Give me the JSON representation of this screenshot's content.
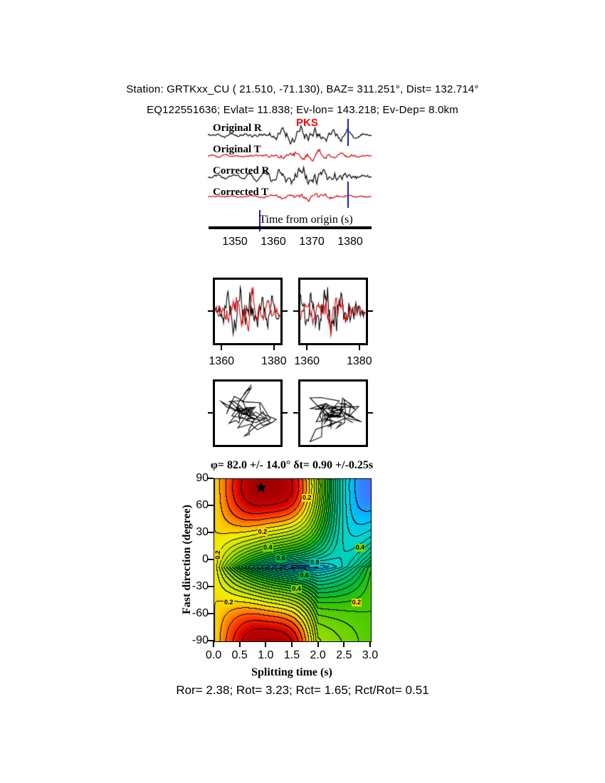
{
  "header": {
    "line1": "Station: GRTKxx_CU (  21.510,  -71.130), BAZ=  311.251°, Dist=  132.714°",
    "line2": "EQ122551636; Evlat=  11.838; Ev-lon= 143.218; Ev-Dep=  8.0km"
  },
  "footer": {
    "text": "Ror= 2.38; Rot= 3.23; Rct= 1.65; Rct/Rot= 0.51"
  },
  "chart_data": [
    {
      "id": "seismograms",
      "type": "line",
      "axis_label": "Time from origin (s)",
      "phase_label": "PKS",
      "phase_color": "#ff0000",
      "xticks": [
        1350,
        1360,
        1370,
        1380
      ],
      "xlim": [
        1343,
        1386
      ],
      "traces": [
        {
          "label": "Original R",
          "color": "#000000",
          "seed": 11,
          "amp": 13
        },
        {
          "label": "Original T",
          "color": "#d40000",
          "seed": 22,
          "amp": 9
        },
        {
          "label": "Corrected R",
          "color": "#000000",
          "seed": 33,
          "amp": 13
        },
        {
          "label": "Corrected T",
          "color": "#d40000",
          "seed": 44,
          "amp": 7
        }
      ],
      "envelope": {
        "center": 1369,
        "width": 9,
        "floor": 0.22
      },
      "window_markers": {
        "color": "#2222bb",
        "marks": [
          {
            "t": 1356.4,
            "at": "axis"
          },
          {
            "t": 1379.5,
            "at": "trace0"
          },
          {
            "t": 1379.5,
            "at": "trace3"
          }
        ]
      }
    },
    {
      "id": "zoom_windows",
      "type": "line",
      "xlim": [
        1357.5,
        1382.5
      ],
      "xticks": [
        1360,
        1380
      ],
      "panels": [
        {
          "name": "original R/T overlay",
          "r_trace": 0,
          "t_trace": 1
        },
        {
          "name": "corrected R/T overlay",
          "r_trace": 2,
          "t_trace": 3
        }
      ]
    },
    {
      "id": "particle_motion",
      "type": "scatter",
      "panels": [
        {
          "name": "original particle motion",
          "x_trace": 0,
          "y_trace": 1
        },
        {
          "name": "corrected particle motion",
          "x_trace": 2,
          "y_trace": 3
        }
      ]
    },
    {
      "id": "splitting_misfit",
      "type": "heatmap",
      "title": "φ= 82.0 +/- 14.0°  δt= 0.90 +/-0.25s",
      "xlabel": "Splitting time (s)",
      "ylabel": "Fast direction (degree)",
      "xticks": [
        "0.0",
        "0.5",
        "1.0",
        "1.5",
        "2.0",
        "2.5",
        "3.0"
      ],
      "yticks": [
        90,
        60,
        30,
        0,
        -30,
        -60,
        -90
      ],
      "xlim": [
        0,
        3
      ],
      "ylim": [
        -90,
        90
      ],
      "best": {
        "phi": 82.0,
        "dt": 0.9
      },
      "contour_interval": 0.04,
      "surface_model": {
        "phi0": 82,
        "dt0": 0.9,
        "left_width": 1.9,
        "right_width": 1.35,
        "bottom_floor": 0.7,
        "bottom_width": 4.0,
        "t2_scale": 0.8,
        "max_dt": 1.7,
        "angle_pow": 0.7
      },
      "labels": [
        {
          "v": "0.2",
          "t": 1.8,
          "phi": 68
        },
        {
          "v": "0.2",
          "t": 0.95,
          "phi": 30
        },
        {
          "v": "0.2",
          "t": 0.1,
          "phi": 5,
          "rot": -90
        },
        {
          "v": "0.4",
          "t": 1.05,
          "phi": 13
        },
        {
          "v": "0.4",
          "t": 2.82,
          "phi": 13
        },
        {
          "v": "0.6",
          "t": 1.3,
          "phi": 1
        },
        {
          "v": "0.8",
          "t": 1.95,
          "phi": -4
        },
        {
          "v": "0.6",
          "t": 1.75,
          "phi": -18
        },
        {
          "v": "0.4",
          "t": 1.6,
          "phi": -33
        },
        {
          "v": "0.2",
          "t": 0.3,
          "phi": -48
        },
        {
          "v": "0.2",
          "t": 2.75,
          "phi": -48
        }
      ],
      "colormap": [
        [
          0.0,
          160,
          0,
          0
        ],
        [
          0.05,
          214,
          0,
          0
        ],
        [
          0.1,
          255,
          60,
          0
        ],
        [
          0.14,
          255,
          130,
          0
        ],
        [
          0.18,
          255,
          200,
          0
        ],
        [
          0.22,
          240,
          240,
          0
        ],
        [
          0.3,
          190,
          230,
          0
        ],
        [
          0.4,
          120,
          215,
          0
        ],
        [
          0.5,
          60,
          200,
          0
        ],
        [
          0.6,
          0,
          185,
          60
        ],
        [
          0.7,
          0,
          195,
          120
        ],
        [
          0.8,
          0,
          205,
          170
        ],
        [
          0.88,
          0,
          215,
          215
        ],
        [
          0.94,
          0,
          190,
          255
        ],
        [
          1.0,
          70,
          110,
          255
        ]
      ]
    }
  ]
}
